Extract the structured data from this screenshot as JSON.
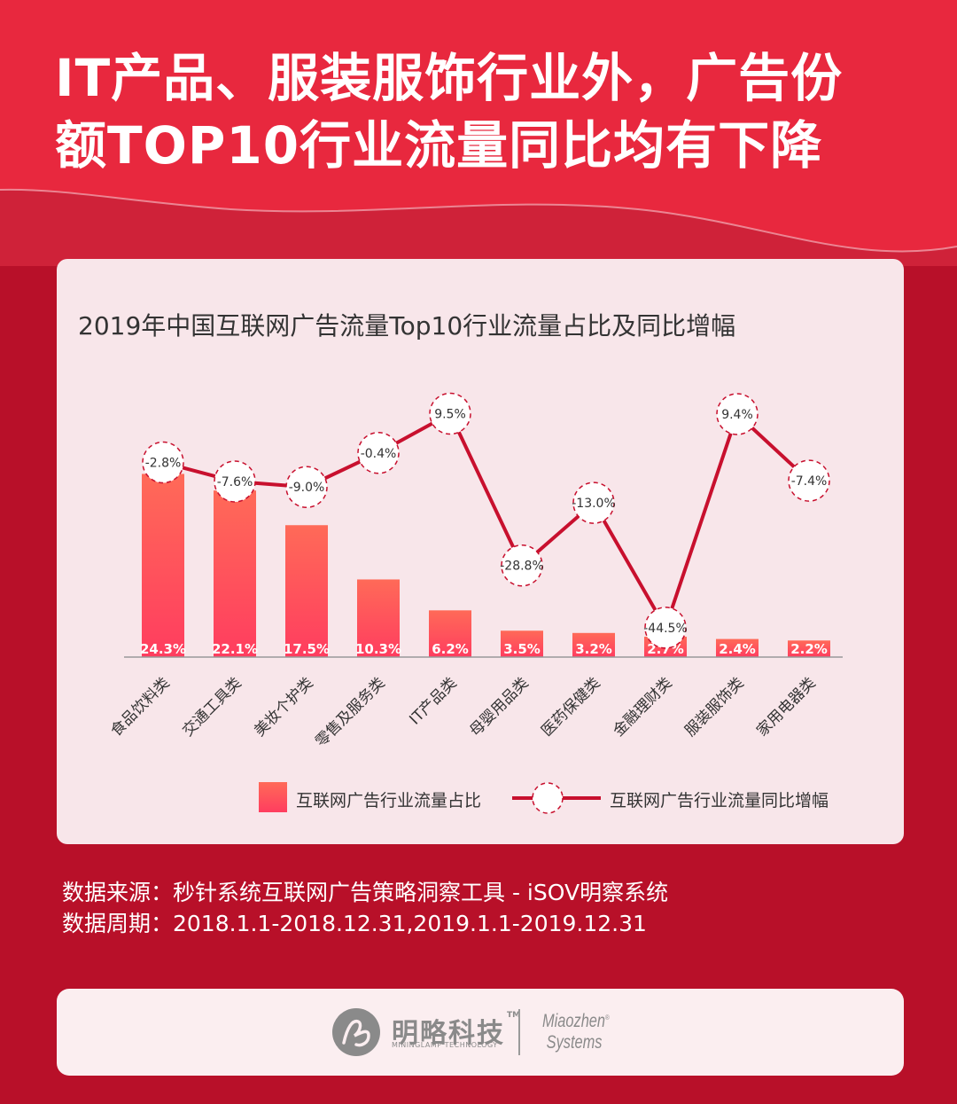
{
  "headline": {
    "line1": "IT产品、服装服饰行业外，广告份",
    "line2": "额TOP10行业流量同比均有下降"
  },
  "colors": {
    "background": "#b81029",
    "header": "#e8283e",
    "bar_top": "#ff6a58",
    "bar_bottom": "#ff3d5f",
    "line": "#c8102e",
    "card": "#f8e6ea"
  },
  "chart_data": {
    "type": "bar",
    "title": "2019年中国互联网广告流量Top10行业流量占比及同比增幅",
    "categories": [
      "食品饮料类",
      "交通工具类",
      "美妆个护类",
      "零售及服务类",
      "IT产品类",
      "母婴用品类",
      "医药保健类",
      "金融理财类",
      "服装服饰类",
      "家用电器类"
    ],
    "series": [
      {
        "name": "互联网广告行业流量占比",
        "type": "bar",
        "values": [
          24.3,
          22.1,
          17.5,
          10.3,
          6.2,
          3.5,
          3.2,
          2.7,
          2.4,
          2.2
        ],
        "labels": [
          "24.3%",
          "22.1%",
          "17.5%",
          "10.3%",
          "6.2%",
          "3.5%",
          "3.2%",
          "2.7%",
          "2.4%",
          "2.2%"
        ]
      },
      {
        "name": "互联网广告行业流量同比增幅",
        "type": "line",
        "values": [
          -2.8,
          -7.6,
          -9.0,
          -0.4,
          9.5,
          -28.8,
          -13.0,
          -44.5,
          9.4,
          -7.4
        ],
        "labels": [
          "-2.8%",
          "-7.6%",
          "-9.0%",
          "-0.4%",
          "9.5%",
          "-28.8%",
          "-13.0%",
          "-44.5%",
          "9.4%",
          "-7.4%"
        ]
      }
    ],
    "legend_position": "bottom",
    "grid": false
  },
  "source": {
    "line1": "数据来源：秒针系统互联网广告策略洞察工具 - iSOV明察系统",
    "line2": "数据周期：2018.1.1-2018.12.31,2019.1.1-2019.12.31"
  },
  "footer": {
    "brand_cn": "明略科技",
    "brand_tm": "TM",
    "brand_en": "MININGLAMP TECHNOLOGY",
    "partner_line1": "Miaozhen",
    "partner_line2": "Systems",
    "partner_mark": "®"
  }
}
